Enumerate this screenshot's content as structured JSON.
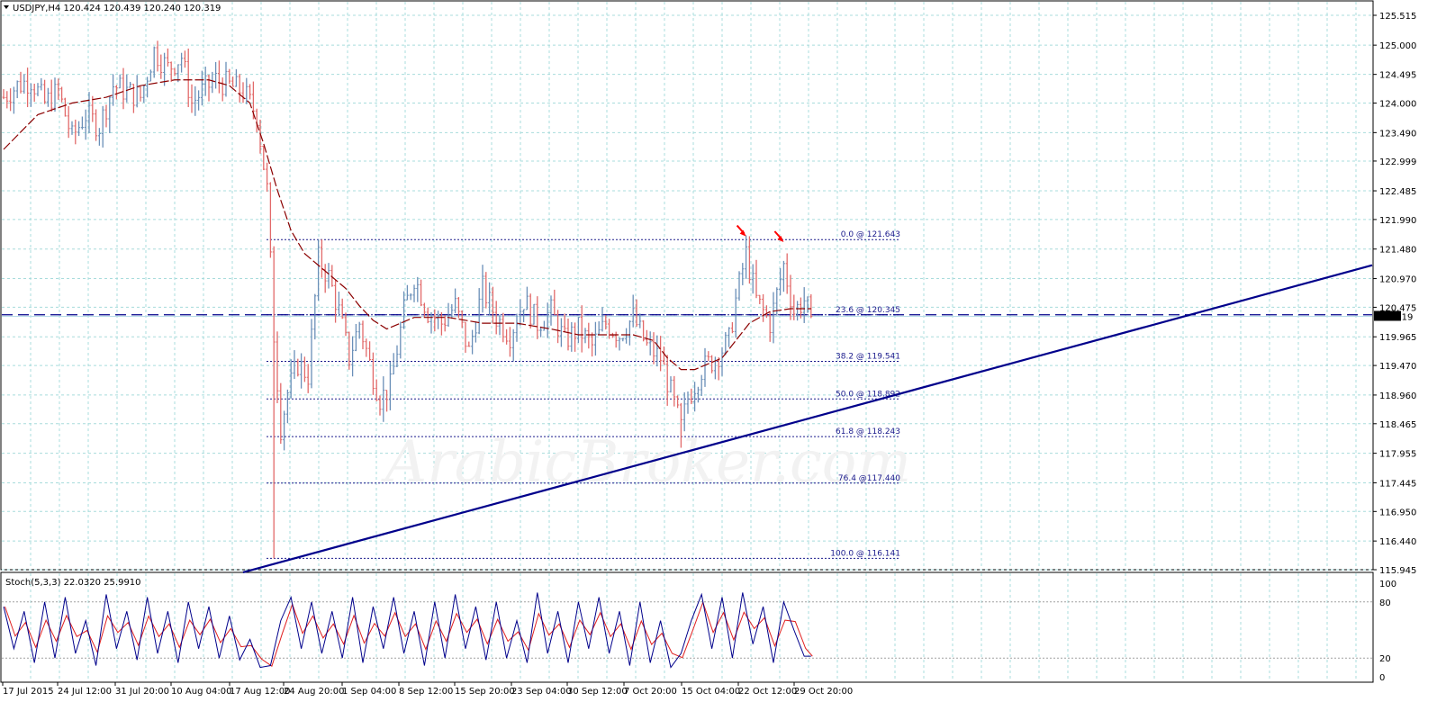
{
  "window": {
    "symbol_header": "USDJPY,H4  120.424 120.439 120.240 120.319"
  },
  "indicator": {
    "stoch_header": "Stoch(5,3,3) 22.0320 25.9910",
    "levels": [
      "100",
      "80",
      "20",
      "0"
    ]
  },
  "current_price_label": "120.319",
  "watermark": "ArabicBroker.com",
  "colors": {
    "bull": "#6a8fb8",
    "bear": "#e26a6a",
    "ma": "#8b0000",
    "trendline": "#00008b",
    "fib": "#1a1a8c",
    "grid": "#a8dcdc",
    "stoch_main": "#00008b",
    "stoch_signal": "#e02020",
    "arrows": "#ff0000"
  },
  "chart_data": {
    "type": "candlestick",
    "y_ticks": [
      "125.515",
      "125.000",
      "124.495",
      "124.000",
      "123.490",
      "122.999",
      "122.485",
      "121.990",
      "121.480",
      "120.970",
      "120.475",
      "119.965",
      "119.470",
      "118.960",
      "118.465",
      "117.955",
      "117.445",
      "116.950",
      "116.440",
      "115.945"
    ],
    "ylim": [
      115.945,
      125.515
    ],
    "x_ticks": [
      "17 Jul 2015",
      "24 Jul 12:00",
      "31 Jul 20:00",
      "10 Aug 04:00",
      "17 Aug 12:00",
      "24 Aug 20:00",
      "1 Sep 04:00",
      "8 Sep 12:00",
      "15 Sep 20:00",
      "23 Sep 04:00",
      "30 Sep 12:00",
      "7 Oct 20:00",
      "15 Oct 04:00",
      "22 Oct 12:00",
      "29 Oct 20:00"
    ],
    "last_close": 120.319,
    "horizontal_line": 120.345,
    "fibonacci": [
      {
        "label": "0.0 @ 121.643",
        "price": 121.643
      },
      {
        "label": "23.6 @ 120.345",
        "price": 120.345
      },
      {
        "label": "38.2 @ 119.541",
        "price": 119.541
      },
      {
        "label": "50.0 @ 118.892",
        "price": 118.892
      },
      {
        "label": "61.8 @ 118.243",
        "price": 118.243
      },
      {
        "label": "76.4 @117.440",
        "price": 117.44
      },
      {
        "label": "100.0 @ 116.141",
        "price": 116.141
      }
    ],
    "trendline": {
      "from": {
        "bar": 70,
        "price": 115.9
      },
      "to": {
        "bar": 400,
        "price": 121.2
      }
    },
    "close_path": [
      [
        0,
        124.1
      ],
      [
        4,
        124.3
      ],
      [
        8,
        124.4
      ],
      [
        12,
        124.0
      ],
      [
        16,
        124.2
      ],
      [
        20,
        123.4
      ],
      [
        24,
        123.8
      ],
      [
        28,
        123.6
      ],
      [
        32,
        124.3
      ],
      [
        36,
        124.2
      ],
      [
        40,
        124.1
      ],
      [
        44,
        124.9
      ],
      [
        48,
        124.6
      ],
      [
        52,
        124.8
      ],
      [
        55,
        124.0
      ],
      [
        58,
        124.2
      ],
      [
        62,
        124.4
      ],
      [
        66,
        124.3
      ],
      [
        70,
        124.2
      ],
      [
        74,
        123.8
      ],
      [
        77,
        122.5
      ],
      [
        79,
        120.0
      ],
      [
        81,
        118.4
      ],
      [
        83,
        119.0
      ],
      [
        86,
        119.5
      ],
      [
        89,
        119.3
      ],
      [
        92,
        121.3
      ],
      [
        95,
        121.0
      ],
      [
        98,
        120.4
      ],
      [
        101,
        119.6
      ],
      [
        104,
        120.2
      ],
      [
        107,
        119.5
      ],
      [
        110,
        118.9
      ],
      [
        113,
        119.1
      ],
      [
        117,
        120.4
      ],
      [
        120,
        121.0
      ],
      [
        124,
        120.4
      ],
      [
        128,
        120.2
      ],
      [
        132,
        120.5
      ],
      [
        136,
        119.7
      ],
      [
        140,
        120.8
      ],
      [
        144,
        120.3
      ],
      [
        148,
        120.0
      ],
      [
        152,
        120.6
      ],
      [
        156,
        120.2
      ],
      [
        160,
        120.4
      ],
      [
        164,
        119.9
      ],
      [
        168,
        120.1
      ],
      [
        172,
        119.8
      ],
      [
        176,
        120.2
      ],
      [
        180,
        120.0
      ],
      [
        184,
        120.3
      ],
      [
        188,
        119.8
      ],
      [
        192,
        119.6
      ],
      [
        196,
        118.8
      ],
      [
        198,
        118.4
      ],
      [
        200,
        118.9
      ],
      [
        204,
        119.4
      ],
      [
        208,
        119.6
      ],
      [
        212,
        119.9
      ],
      [
        214,
        120.6
      ],
      [
        217,
        121.4
      ],
      [
        220,
        120.6
      ],
      [
        224,
        120.2
      ],
      [
        228,
        121.2
      ],
      [
        231,
        120.4
      ],
      [
        234,
        120.6
      ],
      [
        236,
        120.32
      ]
    ],
    "ma_path": [
      [
        0,
        123.2
      ],
      [
        10,
        123.8
      ],
      [
        20,
        124.0
      ],
      [
        30,
        124.1
      ],
      [
        40,
        124.3
      ],
      [
        50,
        124.4
      ],
      [
        60,
        124.4
      ],
      [
        66,
        124.3
      ],
      [
        72,
        124.0
      ],
      [
        76,
        123.3
      ],
      [
        80,
        122.5
      ],
      [
        84,
        121.8
      ],
      [
        88,
        121.4
      ],
      [
        92,
        121.2
      ],
      [
        96,
        121.0
      ],
      [
        100,
        120.8
      ],
      [
        104,
        120.5
      ],
      [
        108,
        120.25
      ],
      [
        112,
        120.1
      ],
      [
        116,
        120.2
      ],
      [
        120,
        120.3
      ],
      [
        125,
        120.3
      ],
      [
        130,
        120.3
      ],
      [
        140,
        120.2
      ],
      [
        150,
        120.2
      ],
      [
        160,
        120.1
      ],
      [
        168,
        120.0
      ],
      [
        176,
        120.0
      ],
      [
        184,
        120.0
      ],
      [
        190,
        119.9
      ],
      [
        194,
        119.6
      ],
      [
        198,
        119.4
      ],
      [
        202,
        119.4
      ],
      [
        206,
        119.5
      ],
      [
        210,
        119.6
      ],
      [
        214,
        119.9
      ],
      [
        218,
        120.2
      ],
      [
        224,
        120.4
      ],
      [
        230,
        120.45
      ],
      [
        236,
        120.45
      ]
    ],
    "stoch_path": [
      [
        0,
        75
      ],
      [
        3,
        30
      ],
      [
        6,
        70
      ],
      [
        9,
        15
      ],
      [
        12,
        80
      ],
      [
        15,
        20
      ],
      [
        18,
        85
      ],
      [
        21,
        25
      ],
      [
        24,
        60
      ],
      [
        27,
        12
      ],
      [
        30,
        88
      ],
      [
        33,
        30
      ],
      [
        36,
        70
      ],
      [
        39,
        18
      ],
      [
        42,
        85
      ],
      [
        45,
        25
      ],
      [
        48,
        70
      ],
      [
        51,
        15
      ],
      [
        54,
        80
      ],
      [
        57,
        30
      ],
      [
        60,
        75
      ],
      [
        63,
        20
      ],
      [
        66,
        65
      ],
      [
        69,
        18
      ],
      [
        72,
        40
      ],
      [
        75,
        10
      ],
      [
        78,
        12
      ],
      [
        81,
        60
      ],
      [
        84,
        85
      ],
      [
        87,
        30
      ],
      [
        90,
        80
      ],
      [
        93,
        25
      ],
      [
        96,
        70
      ],
      [
        99,
        20
      ],
      [
        102,
        85
      ],
      [
        105,
        15
      ],
      [
        108,
        75
      ],
      [
        111,
        30
      ],
      [
        114,
        85
      ],
      [
        117,
        25
      ],
      [
        120,
        70
      ],
      [
        123,
        12
      ],
      [
        126,
        80
      ],
      [
        129,
        20
      ],
      [
        132,
        88
      ],
      [
        135,
        30
      ],
      [
        138,
        75
      ],
      [
        141,
        18
      ],
      [
        144,
        80
      ],
      [
        147,
        20
      ],
      [
        150,
        60
      ],
      [
        153,
        15
      ],
      [
        156,
        90
      ],
      [
        159,
        25
      ],
      [
        162,
        70
      ],
      [
        165,
        15
      ],
      [
        168,
        80
      ],
      [
        171,
        30
      ],
      [
        174,
        85
      ],
      [
        177,
        25
      ],
      [
        180,
        70
      ],
      [
        183,
        12
      ],
      [
        186,
        80
      ],
      [
        189,
        15
      ],
      [
        192,
        60
      ],
      [
        195,
        10
      ],
      [
        198,
        25
      ],
      [
        201,
        60
      ],
      [
        204,
        88
      ],
      [
        207,
        30
      ],
      [
        210,
        85
      ],
      [
        213,
        20
      ],
      [
        216,
        90
      ],
      [
        219,
        35
      ],
      [
        222,
        75
      ],
      [
        225,
        15
      ],
      [
        228,
        80
      ],
      [
        231,
        50
      ],
      [
        234,
        22
      ],
      [
        236,
        22
      ]
    ],
    "signal_markers": [
      {
        "bar": 217,
        "price": 121.7
      },
      {
        "bar": 228,
        "price": 121.6
      }
    ]
  }
}
